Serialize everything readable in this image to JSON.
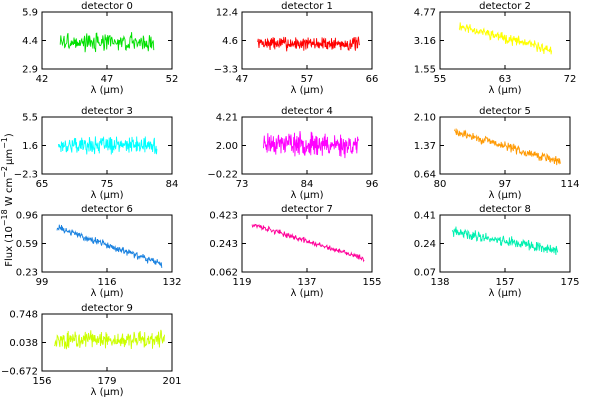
{
  "ylabel_parts": {
    "a": "Flux (10",
    "b": "−18",
    "c": " W cm",
    "d": "−2",
    "e": "μm",
    "f": "−1",
    "g": ")"
  },
  "chart_data": [
    {
      "type": "line",
      "title": "detector 0",
      "xlabel": "λ (μm)",
      "color": "#00e000",
      "xlim": [
        42,
        52
      ],
      "ylim": [
        2.9,
        5.9
      ],
      "xticks": [
        "42",
        "47",
        "52"
      ],
      "yticks": [
        "2.9",
        "4.4",
        "5.9"
      ],
      "x_range": [
        43.4,
        50.6
      ],
      "trend": [
        4.3,
        4.3
      ],
      "noise": 0.45,
      "points": 170,
      "seed": 3
    },
    {
      "type": "line",
      "title": "detector 1",
      "xlabel": "λ (μm)",
      "color": "#ff0000",
      "xlim": [
        47,
        66
      ],
      "ylim": [
        -3.3,
        12.4
      ],
      "xticks": [
        "47",
        "57",
        "66"
      ],
      "yticks": [
        "−3.3",
        "4.6",
        "12.4"
      ],
      "x_range": [
        49.3,
        64.2
      ],
      "trend": [
        3.8,
        3.6
      ],
      "noise": 1.8,
      "points": 240,
      "seed": 7
    },
    {
      "type": "line",
      "title": "detector 2",
      "xlabel": "λ (μm)",
      "color": "#ffff00",
      "xlim": [
        55,
        72
      ],
      "ylim": [
        1.55,
        4.77
      ],
      "xticks": [
        "55",
        "63",
        "72"
      ],
      "yticks": [
        "1.55",
        "3.16",
        "4.77"
      ],
      "x_range": [
        57.5,
        69.6
      ],
      "trend": [
        4.0,
        2.6
      ],
      "noise": 0.28,
      "points": 180,
      "seed": 11
    },
    {
      "type": "line",
      "title": "detector 3",
      "xlabel": "λ (μm)",
      "color": "#00ffff",
      "xlim": [
        65,
        84
      ],
      "ylim": [
        -2.3,
        5.5
      ],
      "xticks": [
        "65",
        "75",
        "84"
      ],
      "yticks": [
        "−2.3",
        "1.6",
        "5.5"
      ],
      "x_range": [
        67.4,
        81.8
      ],
      "trend": [
        1.7,
        1.6
      ],
      "noise": 1.1,
      "points": 230,
      "seed": 17
    },
    {
      "type": "line",
      "title": "detector 4",
      "xlabel": "λ (μm)",
      "color": "#ff00ff",
      "xlim": [
        73,
        96
      ],
      "ylim": [
        -0.22,
        4.21
      ],
      "xticks": [
        "73",
        "84",
        "96"
      ],
      "yticks": [
        "−0.22",
        "2.00",
        "4.21"
      ],
      "x_range": [
        76.8,
        93.6
      ],
      "trend": [
        2.2,
        2.0
      ],
      "noise": 0.85,
      "points": 240,
      "seed": 23
    },
    {
      "type": "line",
      "title": "detector 5",
      "xlabel": "λ (μm)",
      "color": "#ff9900",
      "xlim": [
        80,
        114
      ],
      "ylim": [
        0.64,
        2.1
      ],
      "xticks": [
        "80",
        "97",
        "114"
      ],
      "yticks": [
        "0.64",
        "1.37",
        "2.10"
      ],
      "x_range": [
        83.8,
        111.5
      ],
      "trend": [
        1.72,
        0.95
      ],
      "noise": 0.11,
      "points": 230,
      "seed": 29
    },
    {
      "type": "line",
      "title": "detector 6",
      "xlabel": "λ (μm)",
      "color": "#1a82e0",
      "xlim": [
        99,
        132
      ],
      "ylim": [
        0.23,
        0.96
      ],
      "xticks": [
        "99",
        "116",
        "132"
      ],
      "yticks": [
        "0.23",
        "0.59",
        "0.96"
      ],
      "x_range": [
        102.8,
        129.4
      ],
      "trend": [
        0.8,
        0.33
      ],
      "noise": 0.045,
      "points": 230,
      "seed": 31
    },
    {
      "type": "line",
      "title": "detector 7",
      "xlabel": "λ (μm)",
      "color": "#ff0099",
      "xlim": [
        119,
        155
      ],
      "ylim": [
        0.062,
        0.423
      ],
      "xticks": [
        "119",
        "137",
        "155"
      ],
      "yticks": [
        "0.062",
        "0.243",
        "0.423"
      ],
      "x_range": [
        121.8,
        152.8
      ],
      "trend": [
        0.365,
        0.145
      ],
      "noise": 0.017,
      "points": 230,
      "seed": 37
    },
    {
      "type": "line",
      "title": "detector 8",
      "xlabel": "λ (μm)",
      "color": "#00f0b0",
      "xlim": [
        138,
        175
      ],
      "ylim": [
        0.07,
        0.41
      ],
      "xticks": [
        "138",
        "157",
        "175"
      ],
      "yticks": [
        "0.07",
        "0.24",
        "0.41"
      ],
      "x_range": [
        141.5,
        171.5
      ],
      "trend": [
        0.31,
        0.2
      ],
      "noise": 0.03,
      "points": 230,
      "seed": 41
    },
    {
      "type": "line",
      "title": "detector 9",
      "xlabel": "λ (μm)",
      "color": "#ccff00",
      "xlim": [
        156,
        201
      ],
      "ylim": [
        -0.672,
        0.748
      ],
      "xticks": [
        "156",
        "179",
        "201"
      ],
      "yticks": [
        "−0.672",
        "0.038",
        "0.748"
      ],
      "x_range": [
        160.3,
        198.4
      ],
      "trend": [
        0.1,
        0.1
      ],
      "noise": 0.21,
      "points": 240,
      "seed": 43
    }
  ]
}
